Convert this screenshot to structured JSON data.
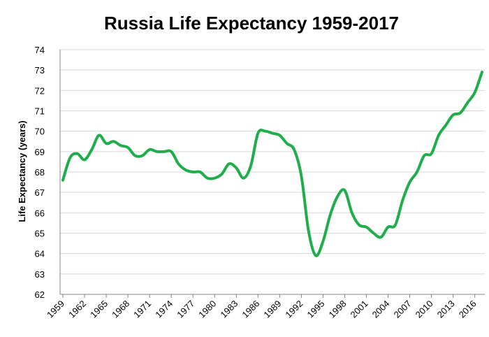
{
  "chart_data": {
    "type": "line",
    "title": "Russia Life Expectancy 1959-2017",
    "xlabel": "",
    "ylabel": "Life Expectancy (years)",
    "ylim": [
      62,
      74
    ],
    "xlim": [
      1959,
      2017
    ],
    "yticks": [
      62,
      63,
      64,
      65,
      66,
      67,
      68,
      69,
      70,
      71,
      72,
      73,
      74
    ],
    "xticks": [
      1959,
      1962,
      1965,
      1968,
      1971,
      1974,
      1977,
      1980,
      1983,
      1986,
      1989,
      1992,
      1995,
      1998,
      2001,
      2004,
      2007,
      2010,
      2013,
      2016
    ],
    "grid": "horizontal",
    "legend": "none",
    "series": [
      {
        "color": "#1fae4b",
        "x": [
          1959,
          1960,
          1961,
          1962,
          1963,
          1964,
          1965,
          1966,
          1967,
          1968,
          1969,
          1970,
          1971,
          1972,
          1973,
          1974,
          1975,
          1976,
          1977,
          1978,
          1979,
          1980,
          1981,
          1982,
          1983,
          1984,
          1985,
          1986,
          1987,
          1988,
          1989,
          1990,
          1991,
          1992,
          1993,
          1994,
          1995,
          1996,
          1997,
          1998,
          1999,
          2000,
          2001,
          2002,
          2003,
          2004,
          2005,
          2006,
          2007,
          2008,
          2009,
          2010,
          2011,
          2012,
          2013,
          2014,
          2015,
          2016,
          2017
        ],
        "y": [
          67.6,
          68.7,
          68.9,
          68.6,
          69.1,
          69.8,
          69.4,
          69.5,
          69.3,
          69.2,
          68.8,
          68.8,
          69.1,
          69.0,
          69.0,
          69.0,
          68.4,
          68.1,
          68.0,
          68.0,
          67.7,
          67.7,
          67.9,
          68.4,
          68.2,
          67.7,
          68.3,
          69.9,
          70.0,
          69.9,
          69.8,
          69.4,
          69.1,
          67.8,
          65.1,
          63.9,
          64.6,
          65.9,
          66.8,
          67.1,
          66.0,
          65.4,
          65.3,
          65.0,
          64.8,
          65.3,
          65.4,
          66.6,
          67.5,
          68.0,
          68.8,
          68.9,
          69.8,
          70.3,
          70.8,
          70.9,
          71.4,
          71.9,
          72.9
        ]
      }
    ]
  }
}
